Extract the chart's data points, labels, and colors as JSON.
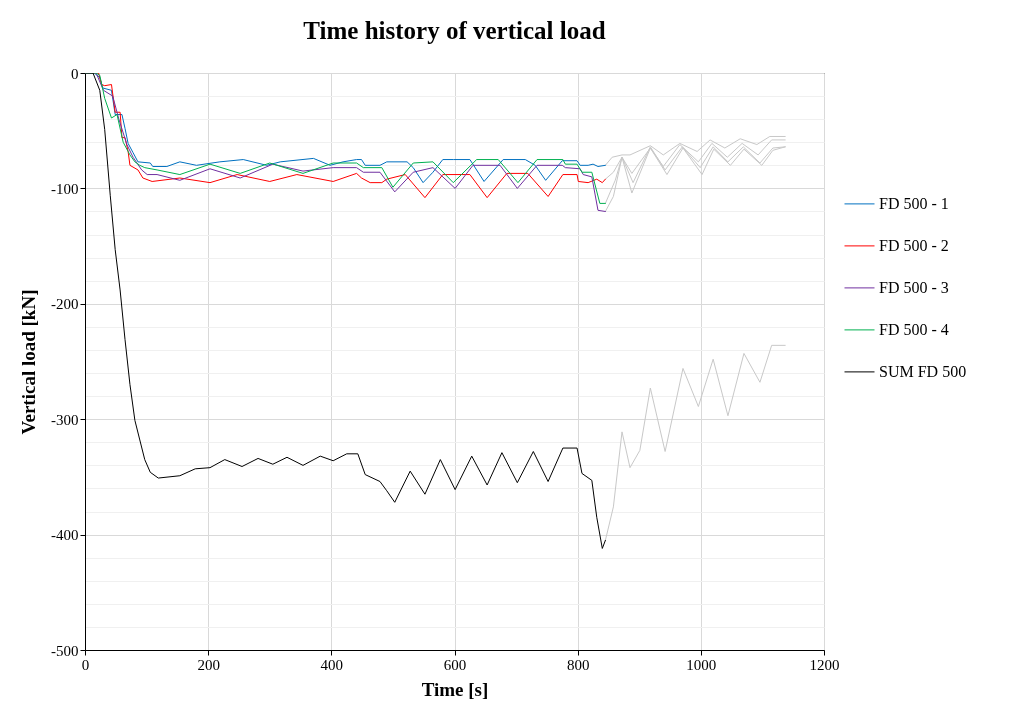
{
  "chart_data": {
    "type": "line",
    "title": "Time history of vertical load",
    "xlabel": "Time [s]",
    "ylabel": "Vertical load [kN]",
    "xlim": [
      0,
      1200
    ],
    "xticks": [
      0,
      200,
      400,
      600,
      800,
      1000,
      1200
    ],
    "ylim": [
      -500,
      0
    ],
    "yticks": [
      -500,
      {
        "value": -480,
        "label": null
      },
      {
        "value": -460,
        "label": null
      },
      {
        "value": -440,
        "label": null
      },
      {
        "value": -420,
        "label": null
      },
      -400,
      {
        "value": -380,
        "label": null
      },
      {
        "value": -360,
        "label": null
      },
      {
        "value": -340,
        "label": null
      },
      {
        "value": -320,
        "label": null
      },
      -300,
      {
        "value": -280,
        "label": null
      },
      {
        "value": -260,
        "label": null
      },
      {
        "value": -240,
        "label": null
      },
      {
        "value": -220,
        "label": null
      },
      -200,
      {
        "value": -180,
        "label": null
      },
      {
        "value": -160,
        "label": null
      },
      {
        "value": -140,
        "label": null
      },
      {
        "value": -120,
        "label": null
      },
      -100,
      {
        "value": -80,
        "label": null
      },
      {
        "value": -60,
        "label": null
      },
      {
        "value": -40,
        "label": null
      },
      {
        "value": -20,
        "label": null
      },
      0
    ],
    "grid": true,
    "legend": "right",
    "marker": "none",
    "line_style": "solid",
    "series": [
      {
        "color": "#c8c8c8",
        "x": [
          845,
          856,
          872,
          885,
          918,
          939,
          966,
          994,
          1015,
          1039,
          1064,
          1091,
          1112,
          1137
        ],
        "values": [
          -80,
          -73,
          -71,
          -71,
          -63,
          -71,
          -61,
          -68,
          -58,
          -65,
          -57,
          -62,
          -55,
          -55
        ]
      },
      {
        "color": "#c8c8c8",
        "x": [
          845,
          858,
          872,
          888,
          918,
          939,
          966,
          996,
          1018,
          1043,
          1067,
          1093,
          1115,
          1137
        ],
        "values": [
          -92,
          -86,
          -73,
          -87,
          -65,
          -81,
          -62,
          -77,
          -61,
          -73,
          -61,
          -71,
          -58,
          -58
        ]
      },
      {
        "color": "#c8c8c8",
        "x": [
          845,
          861,
          872,
          890,
          918,
          942,
          970,
          999,
          1020,
          1044,
          1069,
          1096,
          1117,
          1137
        ],
        "values": [
          -113,
          -93,
          -73,
          -95,
          -64,
          -84,
          -64,
          -82,
          -64,
          -77,
          -64,
          -78,
          -65,
          -64
        ]
      },
      {
        "color": "#c8c8c8",
        "x": [
          845,
          858,
          872,
          888,
          918,
          945,
          971,
          1002,
          1021,
          1048,
          1070,
          1099,
          1117,
          1137
        ],
        "values": [
          -120,
          -107,
          -73,
          -104,
          -65,
          -88,
          -65,
          -88,
          -66,
          -80,
          -66,
          -80,
          -67,
          -64
        ]
      },
      {
        "color": "#c8c8c8",
        "x": [
          845,
          858,
          872,
          885,
          901,
          918,
          942,
          971,
          996,
          1020,
          1044,
          1070,
          1096,
          1115,
          1137
        ],
        "values": [
          -405,
          -376,
          -311,
          -342,
          -327,
          -273,
          -328,
          -256,
          -289,
          -248,
          -297,
          -243,
          -268,
          -236,
          -236
        ]
      },
      {
        "name": "FD 500 - 1",
        "color": "#0070c0",
        "x": [
          0,
          15,
          24,
          29,
          43,
          49,
          60,
          65,
          70,
          78,
          86,
          106,
          110,
          133,
          154,
          181,
          219,
          257,
          295,
          317,
          371,
          398,
          419,
          441,
          449,
          455,
          479,
          490,
          523,
          533,
          549,
          565,
          581,
          598,
          625,
          648,
          679,
          715,
          731,
          748,
          775,
          799,
          804,
          817,
          825,
          833,
          845
        ],
        "values": [
          0,
          0,
          -4,
          -13,
          -15,
          -36,
          -36,
          -48,
          -61,
          -69,
          -77,
          -78,
          -81,
          -81,
          -77,
          -80,
          -77,
          -75,
          -80,
          -77,
          -74,
          -80,
          -77,
          -75,
          -75,
          -80,
          -80,
          -77,
          -77,
          -82,
          -95,
          -86,
          -75,
          -75,
          -75,
          -94,
          -75,
          -75,
          -80,
          -93,
          -76,
          -76,
          -80,
          -80,
          -79,
          -81,
          -80
        ]
      },
      {
        "name": "FD 500 - 2",
        "color": "#ff0000",
        "x": [
          0,
          22,
          27,
          32,
          43,
          49,
          57,
          60,
          65,
          70,
          73,
          86,
          94,
          109,
          154,
          203,
          247,
          300,
          344,
          403,
          441,
          449,
          463,
          482,
          490,
          520,
          552,
          581,
          625,
          653,
          685,
          719,
          752,
          776,
          799,
          801,
          817,
          831,
          840,
          845
        ],
        "values": [
          0,
          0,
          -10,
          -11,
          -10,
          -34,
          -34,
          -56,
          -56,
          -68,
          -80,
          -84,
          -91,
          -94,
          -91,
          -95,
          -88,
          -94,
          -88,
          -94,
          -87,
          -91,
          -95,
          -95,
          -92,
          -88,
          -108,
          -88,
          -88,
          -108,
          -87,
          -87,
          -107,
          -88,
          -88,
          -94,
          -95,
          -92,
          -95,
          -92
        ]
      },
      {
        "name": "FD 500 - 3",
        "color": "#7030a0",
        "x": [
          0,
          18,
          30,
          45,
          55,
          68,
          78,
          92,
          101,
          117,
          154,
          203,
          252,
          305,
          354,
          403,
          441,
          452,
          479,
          503,
          533,
          565,
          601,
          630,
          674,
          702,
          734,
          775,
          780,
          804,
          809,
          823,
          833,
          845
        ],
        "values": [
          0,
          0,
          -15,
          -20,
          -40,
          -62,
          -73,
          -84,
          -88,
          -88,
          -93,
          -83,
          -91,
          -79,
          -85,
          -82,
          -82,
          -86,
          -86,
          -103,
          -86,
          -82,
          -100,
          -80,
          -80,
          -100,
          -80,
          -80,
          -82,
          -83,
          -88,
          -90,
          -119,
          -120
        ]
      },
      {
        "name": "FD 500 - 4",
        "color": "#00b050",
        "x": [
          0,
          18,
          24,
          32,
          43,
          52,
          62,
          73,
          81,
          89,
          97,
          117,
          154,
          203,
          252,
          300,
          354,
          403,
          441,
          452,
          482,
          500,
          533,
          565,
          598,
          636,
          671,
          703,
          734,
          776,
          780,
          799,
          807,
          823,
          836,
          845
        ],
        "values": [
          0,
          0,
          -2,
          -22,
          -39,
          -36,
          -60,
          -71,
          -77,
          -80,
          -82,
          -84,
          -88,
          -79,
          -87,
          -78,
          -87,
          -78,
          -78,
          -82,
          -82,
          -99,
          -78,
          -77,
          -95,
          -75,
          -75,
          -95,
          -75,
          -75,
          -79,
          -79,
          -86,
          -86,
          -113,
          -113
        ]
      },
      {
        "name": "SUM FD 500",
        "color": "#000000",
        "x": [
          0,
          13,
          24,
          32,
          41,
          49,
          57,
          65,
          73,
          81,
          89,
          97,
          106,
          119,
          154,
          179,
          203,
          227,
          255,
          281,
          305,
          328,
          354,
          382,
          403,
          425,
          443,
          455,
          479,
          490,
          503,
          528,
          552,
          577,
          601,
          628,
          653,
          677,
          702,
          728,
          752,
          776,
          799,
          807,
          823,
          831,
          840,
          845
        ],
        "values": [
          0,
          0,
          -15,
          -49,
          -106,
          -153,
          -188,
          -231,
          -270,
          -301,
          -318,
          -335,
          -346,
          -351,
          -349,
          -343,
          -342,
          -335,
          -341,
          -334,
          -339,
          -333,
          -340,
          -332,
          -336,
          -330,
          -330,
          -348,
          -354,
          -362,
          -372,
          -345,
          -365,
          -335,
          -361,
          -332,
          -357,
          -329,
          -355,
          -328,
          -354,
          -325,
          -325,
          -347,
          -353,
          -385,
          -412,
          -405
        ]
      }
    ]
  }
}
